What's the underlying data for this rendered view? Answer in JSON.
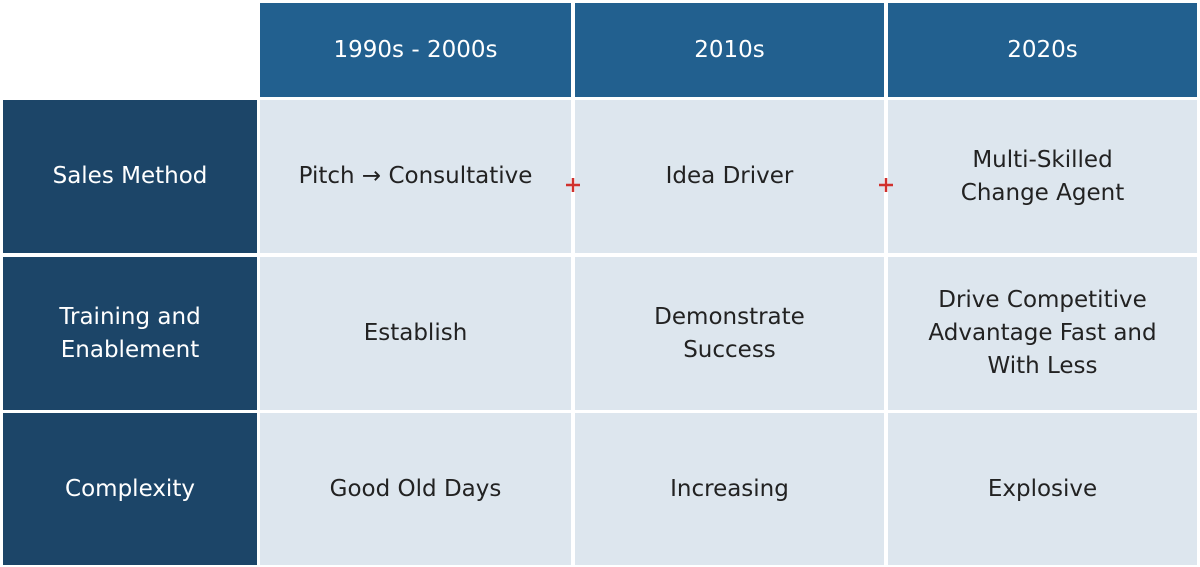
{
  "table": {
    "columns": [
      "1990s - 2000s",
      "2010s",
      "2020s"
    ],
    "rows": [
      {
        "label": [
          "Sales Method"
        ],
        "cells": [
          [
            "Pitch → Consultative"
          ],
          [
            "Idea Driver"
          ],
          [
            "Multi-Skilled",
            "Change Agent"
          ]
        ]
      },
      {
        "label": [
          "Training and",
          "Enablement"
        ],
        "cells": [
          [
            "Establish"
          ],
          [
            "Demonstrate",
            "Success"
          ],
          [
            "Drive Competitive",
            "Advantage Fast and",
            "With Less"
          ]
        ]
      },
      {
        "label": [
          "Complexity"
        ],
        "cells": [
          [
            "Good Old Days"
          ],
          [
            "Increasing"
          ],
          [
            "Explosive"
          ]
        ]
      }
    ]
  }
}
